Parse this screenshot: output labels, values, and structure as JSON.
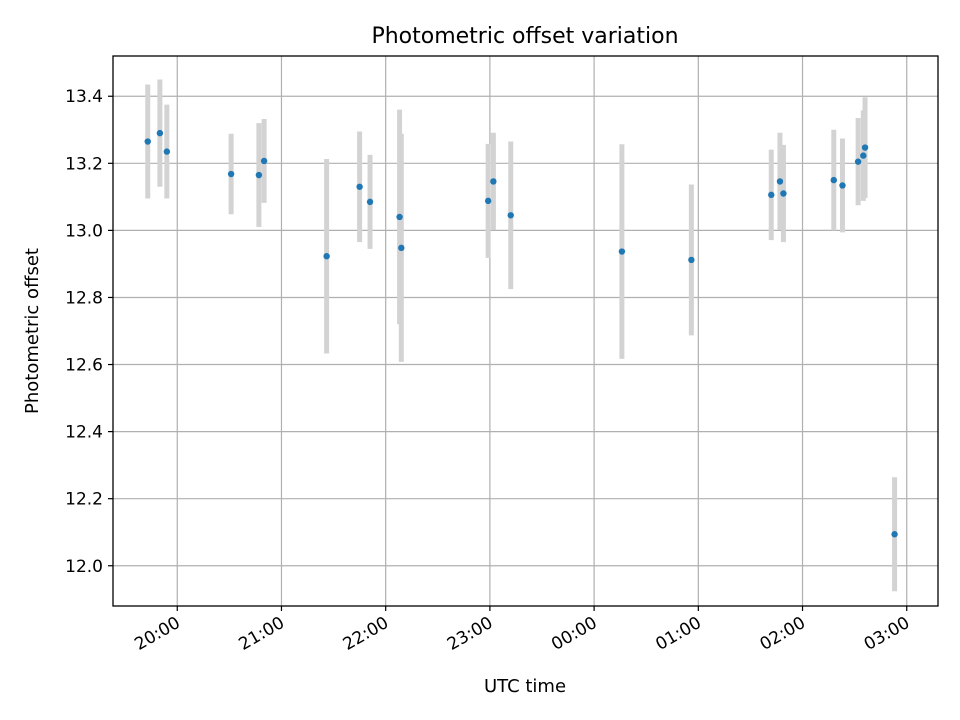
{
  "colors": {
    "point": "#1f77b4",
    "errorbar": "#d3d3d3",
    "grid": "#b0b0b0"
  },
  "chart_data": {
    "type": "scatter",
    "title": "Photometric offset variation",
    "xlabel": "UTC time",
    "ylabel": "Photometric offset",
    "grid": true,
    "xlim": [
      "2000-01-01T19:23:00",
      "2000-01-02T03:18:00"
    ],
    "ylim": [
      11.88,
      13.52
    ],
    "xticks": [
      {
        "t": "2000-01-01T20:00:00",
        "label": "20:00"
      },
      {
        "t": "2000-01-01T21:00:00",
        "label": "21:00"
      },
      {
        "t": "2000-01-01T22:00:00",
        "label": "22:00"
      },
      {
        "t": "2000-01-01T23:00:00",
        "label": "23:00"
      },
      {
        "t": "2000-01-02T00:00:00",
        "label": "00:00"
      },
      {
        "t": "2000-01-02T01:00:00",
        "label": "01:00"
      },
      {
        "t": "2000-01-02T02:00:00",
        "label": "02:00"
      },
      {
        "t": "2000-01-02T03:00:00",
        "label": "03:00"
      }
    ],
    "yticks": [
      {
        "value": 12.0,
        "label": "12.0"
      },
      {
        "value": 12.2,
        "label": "12.2"
      },
      {
        "value": 12.4,
        "label": "12.4"
      },
      {
        "value": 12.6,
        "label": "12.6"
      },
      {
        "value": 12.8,
        "label": "12.8"
      },
      {
        "value": 13.0,
        "label": "13.0"
      },
      {
        "value": 13.2,
        "label": "13.2"
      },
      {
        "value": 13.4,
        "label": "13.4"
      }
    ],
    "points": [
      {
        "t": "2000-01-01T19:43:00",
        "y": 13.265,
        "err": 0.17
      },
      {
        "t": "2000-01-01T19:50:00",
        "y": 13.29,
        "err": 0.16
      },
      {
        "t": "2000-01-01T19:54:00",
        "y": 13.235,
        "err": 0.14
      },
      {
        "t": "2000-01-01T20:31:00",
        "y": 13.168,
        "err": 0.12
      },
      {
        "t": "2000-01-01T20:47:00",
        "y": 13.165,
        "err": 0.155
      },
      {
        "t": "2000-01-01T20:50:00",
        "y": 13.207,
        "err": 0.125
      },
      {
        "t": "2000-01-01T21:26:00",
        "y": 12.923,
        "err": 0.29
      },
      {
        "t": "2000-01-01T21:45:00",
        "y": 13.13,
        "err": 0.165
      },
      {
        "t": "2000-01-01T21:51:00",
        "y": 13.085,
        "err": 0.14
      },
      {
        "t": "2000-01-01T22:08:00",
        "y": 13.04,
        "err": 0.32
      },
      {
        "t": "2000-01-01T22:09:00",
        "y": 12.948,
        "err": 0.34
      },
      {
        "t": "2000-01-01T22:59:00",
        "y": 13.088,
        "err": 0.17
      },
      {
        "t": "2000-01-01T23:02:00",
        "y": 13.146,
        "err": 0.145
      },
      {
        "t": "2000-01-01T23:12:00",
        "y": 13.045,
        "err": 0.22
      },
      {
        "t": "2000-01-02T00:16:00",
        "y": 12.937,
        "err": 0.32
      },
      {
        "t": "2000-01-02T00:56:00",
        "y": 12.912,
        "err": 0.225
      },
      {
        "t": "2000-01-02T01:42:00",
        "y": 13.106,
        "err": 0.135
      },
      {
        "t": "2000-01-02T01:47:00",
        "y": 13.146,
        "err": 0.145
      },
      {
        "t": "2000-01-02T01:49:00",
        "y": 13.11,
        "err": 0.145
      },
      {
        "t": "2000-01-02T02:18:00",
        "y": 13.15,
        "err": 0.15
      },
      {
        "t": "2000-01-02T02:23:00",
        "y": 13.134,
        "err": 0.14
      },
      {
        "t": "2000-01-02T02:32:00",
        "y": 13.205,
        "err": 0.13
      },
      {
        "t": "2000-01-02T02:35:00",
        "y": 13.223,
        "err": 0.135
      },
      {
        "t": "2000-01-02T02:36:00",
        "y": 13.247,
        "err": 0.15
      },
      {
        "t": "2000-01-02T02:53:00",
        "y": 12.094,
        "err": 0.17
      }
    ]
  }
}
